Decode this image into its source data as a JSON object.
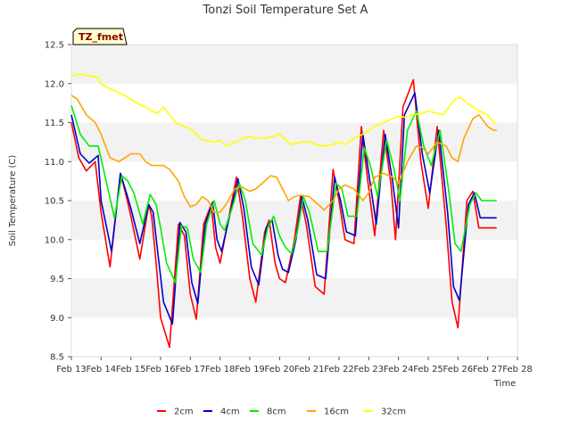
{
  "chart_data": {
    "type": "line",
    "title": "Tonzi Soil Temperature Set A",
    "xlabel": "Time",
    "ylabel": "Soil Temperature (C)",
    "site_label": "TZ_fmet",
    "xlim": [
      0,
      15
    ],
    "ylim": [
      8.5,
      12.5
    ],
    "x_tick_values": [
      0,
      1,
      2,
      3,
      4,
      5,
      6,
      7,
      8,
      9,
      10,
      11,
      12,
      13,
      14,
      15
    ],
    "x_tick_labels": [
      "Feb 13",
      "Feb 14",
      "Feb 15",
      "Feb 16",
      "Feb 17",
      "Feb 18",
      "Feb 19",
      "Feb 20",
      "Feb 21",
      "Feb 22",
      "Feb 23",
      "Feb 24",
      "Feb 25",
      "Feb 26",
      "Feb 27",
      "Feb 28"
    ],
    "y_ticks": [
      8.5,
      9.0,
      9.5,
      10.0,
      10.5,
      11.0,
      11.5,
      12.0,
      12.5
    ],
    "y_tick_labels": [
      "8.5",
      "9.0",
      "9.5",
      "10.0",
      "10.5",
      "11.0",
      "11.5",
      "12.0",
      "12.5"
    ],
    "grid": "horizontal bands",
    "legend_position": "bottom",
    "series": [
      {
        "name": "2cm",
        "color": "#ff0000",
        "x": [
          0.0,
          0.25,
          0.5,
          0.8,
          1.0,
          1.3,
          1.65,
          1.85,
          2.0,
          2.3,
          2.6,
          2.7,
          2.85,
          3.0,
          3.3,
          3.6,
          3.8,
          4.0,
          4.2,
          4.45,
          4.7,
          4.85,
          5.0,
          5.3,
          5.55,
          5.75,
          6.0,
          6.2,
          6.5,
          6.65,
          6.85,
          7.0,
          7.2,
          7.5,
          7.7,
          7.9,
          8.2,
          8.5,
          8.8,
          9.0,
          9.2,
          9.5,
          9.75,
          9.95,
          10.2,
          10.5,
          10.75,
          10.9,
          11.15,
          11.5,
          11.75,
          12.0,
          12.3,
          12.6,
          12.8,
          13.0,
          13.3,
          13.5,
          13.7,
          14.0,
          14.2,
          14.3
        ],
        "y": [
          11.5,
          11.05,
          10.88,
          11.0,
          10.35,
          9.65,
          10.85,
          10.55,
          10.3,
          9.75,
          10.45,
          10.3,
          9.7,
          9.0,
          8.62,
          10.2,
          10.05,
          9.3,
          8.98,
          10.2,
          10.45,
          9.9,
          9.7,
          10.3,
          10.8,
          10.3,
          9.5,
          9.2,
          10.1,
          10.25,
          9.7,
          9.5,
          9.45,
          10.0,
          10.55,
          10.2,
          9.4,
          9.3,
          10.9,
          10.5,
          10.0,
          9.95,
          11.45,
          10.8,
          10.05,
          11.4,
          10.7,
          10.0,
          11.7,
          12.05,
          11.0,
          10.4,
          11.45,
          10.2,
          9.2,
          8.87,
          10.5,
          10.62,
          10.15,
          10.15,
          10.15,
          10.15
        ]
      },
      {
        "name": "4cm",
        "color": "#0000cc",
        "x": [
          0.0,
          0.3,
          0.6,
          0.9,
          1.0,
          1.35,
          1.65,
          1.85,
          2.0,
          2.3,
          2.6,
          2.75,
          2.9,
          3.1,
          3.4,
          3.65,
          3.85,
          4.05,
          4.25,
          4.5,
          4.75,
          4.9,
          5.05,
          5.35,
          5.6,
          5.8,
          6.05,
          6.3,
          6.55,
          6.75,
          6.95,
          7.1,
          7.3,
          7.55,
          7.75,
          7.95,
          8.25,
          8.55,
          8.85,
          9.05,
          9.25,
          9.55,
          9.8,
          10.0,
          10.25,
          10.55,
          10.8,
          11.0,
          11.2,
          11.55,
          11.8,
          12.05,
          12.35,
          12.65,
          12.85,
          13.05,
          13.35,
          13.55,
          13.75,
          14.0,
          14.2,
          14.3
        ],
        "y": [
          11.6,
          11.1,
          10.98,
          11.08,
          10.5,
          9.85,
          10.85,
          10.6,
          10.4,
          9.95,
          10.45,
          10.35,
          9.85,
          9.2,
          8.92,
          10.22,
          10.1,
          9.45,
          9.18,
          10.2,
          10.48,
          10.0,
          9.85,
          10.35,
          10.78,
          10.4,
          9.65,
          9.42,
          10.15,
          10.25,
          9.8,
          9.62,
          9.58,
          10.0,
          10.55,
          10.25,
          9.55,
          9.5,
          10.8,
          10.5,
          10.1,
          10.05,
          11.35,
          10.85,
          10.2,
          11.35,
          10.75,
          10.15,
          11.6,
          11.88,
          11.1,
          10.6,
          11.4,
          10.35,
          9.4,
          9.22,
          10.45,
          10.6,
          10.28,
          10.28,
          10.28,
          10.28
        ]
      },
      {
        "name": "8cm",
        "color": "#00ee00",
        "x": [
          0.0,
          0.3,
          0.6,
          0.9,
          1.05,
          1.45,
          1.7,
          1.9,
          2.1,
          2.4,
          2.65,
          2.85,
          3.0,
          3.2,
          3.5,
          3.7,
          3.9,
          4.1,
          4.35,
          4.55,
          4.8,
          5.0,
          5.15,
          5.4,
          5.65,
          5.85,
          6.1,
          6.4,
          6.6,
          6.8,
          7.0,
          7.2,
          7.4,
          7.6,
          7.8,
          8.0,
          8.3,
          8.6,
          8.9,
          9.1,
          9.3,
          9.6,
          9.85,
          10.05,
          10.3,
          10.6,
          10.85,
          11.05,
          11.3,
          11.6,
          11.85,
          12.1,
          12.4,
          12.7,
          12.9,
          13.1,
          13.4,
          13.6,
          13.8,
          14.0,
          14.2,
          14.3
        ],
        "y": [
          11.72,
          11.35,
          11.2,
          11.2,
          10.95,
          10.28,
          10.82,
          10.75,
          10.6,
          10.2,
          10.58,
          10.45,
          10.15,
          9.7,
          9.45,
          10.18,
          10.15,
          9.75,
          9.58,
          10.2,
          10.5,
          10.2,
          10.12,
          10.4,
          10.72,
          10.5,
          9.95,
          9.8,
          10.15,
          10.3,
          10.05,
          9.9,
          9.82,
          10.1,
          10.55,
          10.35,
          9.85,
          9.85,
          10.72,
          10.65,
          10.3,
          10.3,
          11.18,
          10.95,
          10.55,
          11.28,
          10.9,
          10.5,
          11.4,
          11.65,
          11.2,
          10.95,
          11.4,
          10.6,
          9.95,
          9.85,
          10.45,
          10.6,
          10.5,
          10.5,
          10.5,
          10.5
        ]
      },
      {
        "name": "16cm",
        "color": "#ffa500",
        "x": [
          0.0,
          0.2,
          0.5,
          0.8,
          1.0,
          1.3,
          1.6,
          1.8,
          2.0,
          2.3,
          2.5,
          2.7,
          2.9,
          3.1,
          3.3,
          3.6,
          3.8,
          4.0,
          4.2,
          4.4,
          4.6,
          4.8,
          5.0,
          5.2,
          5.5,
          5.7,
          6.0,
          6.2,
          6.5,
          6.7,
          6.9,
          7.1,
          7.3,
          7.5,
          7.7,
          8.0,
          8.3,
          8.5,
          8.8,
          9.0,
          9.2,
          9.5,
          9.8,
          10.0,
          10.2,
          10.5,
          10.8,
          11.0,
          11.3,
          11.6,
          11.8,
          12.0,
          12.3,
          12.6,
          12.8,
          13.0,
          13.2,
          13.5,
          13.7,
          14.0,
          14.2,
          14.3
        ],
        "y": [
          11.85,
          11.8,
          11.6,
          11.5,
          11.35,
          11.05,
          11.0,
          11.05,
          11.1,
          11.1,
          11.0,
          10.95,
          10.95,
          10.95,
          10.9,
          10.75,
          10.55,
          10.42,
          10.45,
          10.55,
          10.5,
          10.35,
          10.35,
          10.45,
          10.65,
          10.68,
          10.62,
          10.65,
          10.75,
          10.82,
          10.8,
          10.65,
          10.5,
          10.55,
          10.57,
          10.55,
          10.45,
          10.38,
          10.5,
          10.65,
          10.7,
          10.65,
          10.5,
          10.6,
          10.8,
          10.85,
          10.8,
          10.72,
          11.0,
          11.2,
          11.18,
          11.1,
          11.25,
          11.2,
          11.05,
          11.0,
          11.3,
          11.55,
          11.6,
          11.45,
          11.4,
          11.4
        ]
      },
      {
        "name": "32cm",
        "color": "#ffff00",
        "x": [
          0.0,
          0.3,
          0.6,
          0.9,
          1.0,
          1.2,
          1.5,
          1.8,
          2.0,
          2.2,
          2.5,
          2.7,
          2.9,
          3.1,
          3.3,
          3.5,
          3.8,
          4.0,
          4.2,
          4.4,
          4.6,
          4.8,
          5.0,
          5.2,
          5.5,
          5.8,
          6.0,
          6.2,
          6.5,
          6.8,
          7.0,
          7.2,
          7.4,
          7.7,
          8.0,
          8.2,
          8.5,
          8.8,
          9.0,
          9.2,
          9.5,
          9.8,
          10.0,
          10.2,
          10.5,
          10.8,
          11.0,
          11.2,
          11.5,
          11.8,
          12.0,
          12.2,
          12.5,
          12.7,
          12.9,
          13.1,
          13.3,
          13.5,
          13.7,
          14.0,
          14.2,
          14.3
        ],
        "y": [
          12.1,
          12.12,
          12.1,
          12.08,
          12.0,
          11.95,
          11.9,
          11.85,
          11.8,
          11.75,
          11.7,
          11.65,
          11.62,
          11.7,
          11.6,
          11.5,
          11.45,
          11.42,
          11.35,
          11.28,
          11.27,
          11.25,
          11.27,
          11.2,
          11.25,
          11.3,
          11.32,
          11.3,
          11.3,
          11.32,
          11.36,
          11.28,
          11.22,
          11.25,
          11.25,
          11.22,
          11.2,
          11.22,
          11.25,
          11.22,
          11.3,
          11.35,
          11.4,
          11.45,
          11.5,
          11.55,
          11.58,
          11.57,
          11.6,
          11.62,
          11.65,
          11.63,
          11.6,
          11.7,
          11.8,
          11.82,
          11.75,
          11.7,
          11.65,
          11.6,
          11.5,
          11.48
        ]
      }
    ]
  }
}
